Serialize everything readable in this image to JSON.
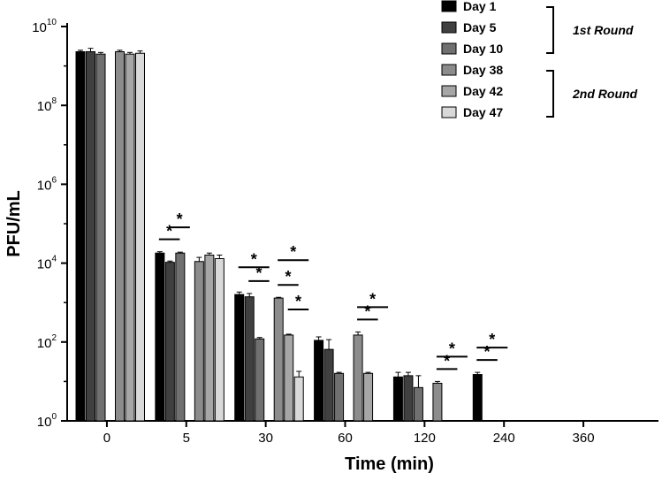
{
  "chart_data": {
    "type": "bar",
    "ylabel": "PFU/mL",
    "xlabel": "Time (min)",
    "yscale": "log10",
    "ylim": [
      1,
      10000000000
    ],
    "y_ticks": [
      {
        "value": 1,
        "base": "10",
        "exp": "0"
      },
      {
        "value": 100,
        "base": "10",
        "exp": "2"
      },
      {
        "value": 10000,
        "base": "10",
        "exp": "4"
      },
      {
        "value": 1000000,
        "base": "10",
        "exp": "6"
      },
      {
        "value": 100000000,
        "base": "10",
        "exp": "8"
      },
      {
        "value": 10000000000,
        "base": "10",
        "exp": "10"
      }
    ],
    "categories": [
      "0",
      "5",
      "30",
      "60",
      "120",
      "240",
      "360"
    ],
    "series": [
      {
        "name": "Day 1",
        "color": "#000000",
        "values": [
          2300000000.0,
          18000,
          1600,
          110,
          13,
          15,
          null
        ],
        "errors": [
          200000000.0,
          1500,
          250,
          25,
          4,
          2,
          null
        ]
      },
      {
        "name": "Day 5",
        "color": "#404040",
        "values": [
          2300000000.0,
          10500,
          1400,
          65,
          14,
          null,
          null
        ],
        "errors": [
          500000000.0,
          800,
          300,
          50,
          3,
          null,
          null
        ]
      },
      {
        "name": "Day 10",
        "color": "#707070",
        "values": [
          2000000000.0,
          18000,
          120,
          16,
          7,
          null,
          null
        ],
        "errors": [
          200000000.0,
          1000,
          10,
          1,
          7,
          null,
          null
        ]
      },
      {
        "name": "Day 38",
        "color": "#8c8c8c",
        "values": [
          2300000000.0,
          11000,
          1300,
          150,
          9,
          null,
          null
        ],
        "errors": [
          200000000.0,
          3000,
          60,
          30,
          1,
          null,
          null
        ]
      },
      {
        "name": "Day 42",
        "color": "#a6a6a6",
        "values": [
          2000000000.0,
          16000,
          150,
          16,
          null,
          null,
          null
        ],
        "errors": [
          200000000.0,
          2000,
          8,
          1,
          null,
          null,
          null
        ]
      },
      {
        "name": "Day 47",
        "color": "#d9d9d9",
        "values": [
          2100000000.0,
          13000,
          13,
          null,
          null,
          null,
          null
        ],
        "errors": [
          300000000.0,
          3000,
          5,
          null,
          null,
          null,
          null
        ]
      }
    ],
    "legend": {
      "position": "top-right",
      "groups": [
        {
          "label": "1st Round",
          "series": [
            "Day 1",
            "Day 5",
            "Day 10"
          ]
        },
        {
          "label": "2nd Round",
          "series": [
            "Day 38",
            "Day 42",
            "Day 47"
          ]
        }
      ]
    },
    "significance": [
      {
        "category": "5",
        "from": 0,
        "to": 1,
        "level": 0,
        "label": "*"
      },
      {
        "category": "5",
        "from": 1,
        "to": 2,
        "level": 1,
        "label": "*"
      },
      {
        "category": "30",
        "from": 0,
        "to": 2,
        "level": 1,
        "label": "*"
      },
      {
        "category": "30",
        "from": 1,
        "to": 2,
        "level": 0,
        "label": "*"
      },
      {
        "category": "30",
        "from": 3,
        "to": 4,
        "level": 0,
        "label": "*"
      },
      {
        "category": "30",
        "from": 4,
        "to": 5,
        "level": 1,
        "label": "*"
      },
      {
        "category": "30",
        "from": 3,
        "to": 5,
        "level": 2,
        "label": "*"
      },
      {
        "category": "60",
        "from": 3,
        "to": 4,
        "level": 0,
        "label": "*"
      },
      {
        "category": "60",
        "from": 3,
        "to": 5,
        "level": 1,
        "label": "*"
      },
      {
        "category": "120",
        "from": 3,
        "to": 4,
        "level": 0,
        "label": "*"
      },
      {
        "category": "120",
        "from": 3,
        "to": 5,
        "level": 1,
        "label": "*"
      },
      {
        "category": "240",
        "from": 0,
        "to": 1,
        "level": 0,
        "label": "*"
      },
      {
        "category": "240",
        "from": 0,
        "to": 2,
        "level": 1,
        "label": "*"
      }
    ]
  }
}
